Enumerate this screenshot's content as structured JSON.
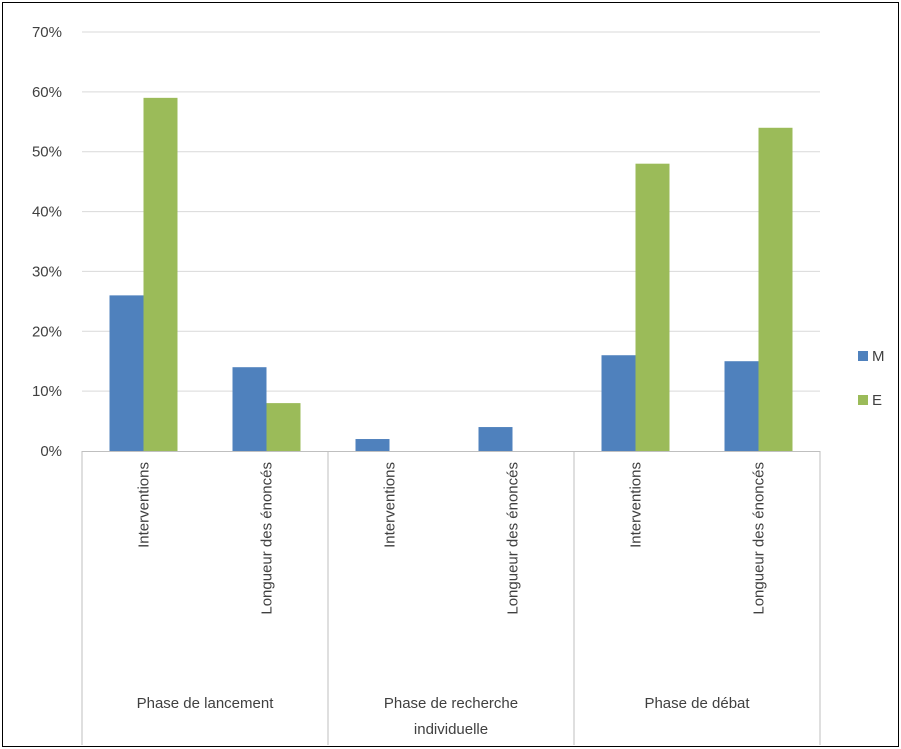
{
  "chart_data": {
    "type": "bar",
    "title": "",
    "xlabel": "",
    "ylabel": "",
    "ylim": [
      0,
      0.7
    ],
    "yticks": [
      0,
      0.1,
      0.2,
      0.3,
      0.4,
      0.5,
      0.6,
      0.7
    ],
    "ytick_labels": [
      "0%",
      "10%",
      "20%",
      "30%",
      "40%",
      "50%",
      "60%",
      "70%"
    ],
    "grid": true,
    "legend_position": "right",
    "groups": [
      {
        "label": "Phase de lancement",
        "categories": [
          "Interventions",
          "Longueur des énoncés"
        ]
      },
      {
        "label": "Phase de recherche individuelle",
        "categories": [
          "Interventions",
          "Longueur des énoncés"
        ]
      },
      {
        "label": "Phase de débat",
        "categories": [
          "Interventions",
          "Longueur des énoncés"
        ]
      }
    ],
    "categories": [
      "Interventions",
      "Longueur des énoncés",
      "Interventions",
      "Longueur des énoncés",
      "Interventions",
      "Longueur des énoncés"
    ],
    "series": [
      {
        "name": "M",
        "color": "#4f81bd",
        "values": [
          0.26,
          0.14,
          0.02,
          0.04,
          0.16,
          0.15
        ]
      },
      {
        "name": "E",
        "color": "#9bbb59",
        "values": [
          0.59,
          0.08,
          0.0,
          0.0,
          0.48,
          0.54
        ]
      }
    ]
  }
}
